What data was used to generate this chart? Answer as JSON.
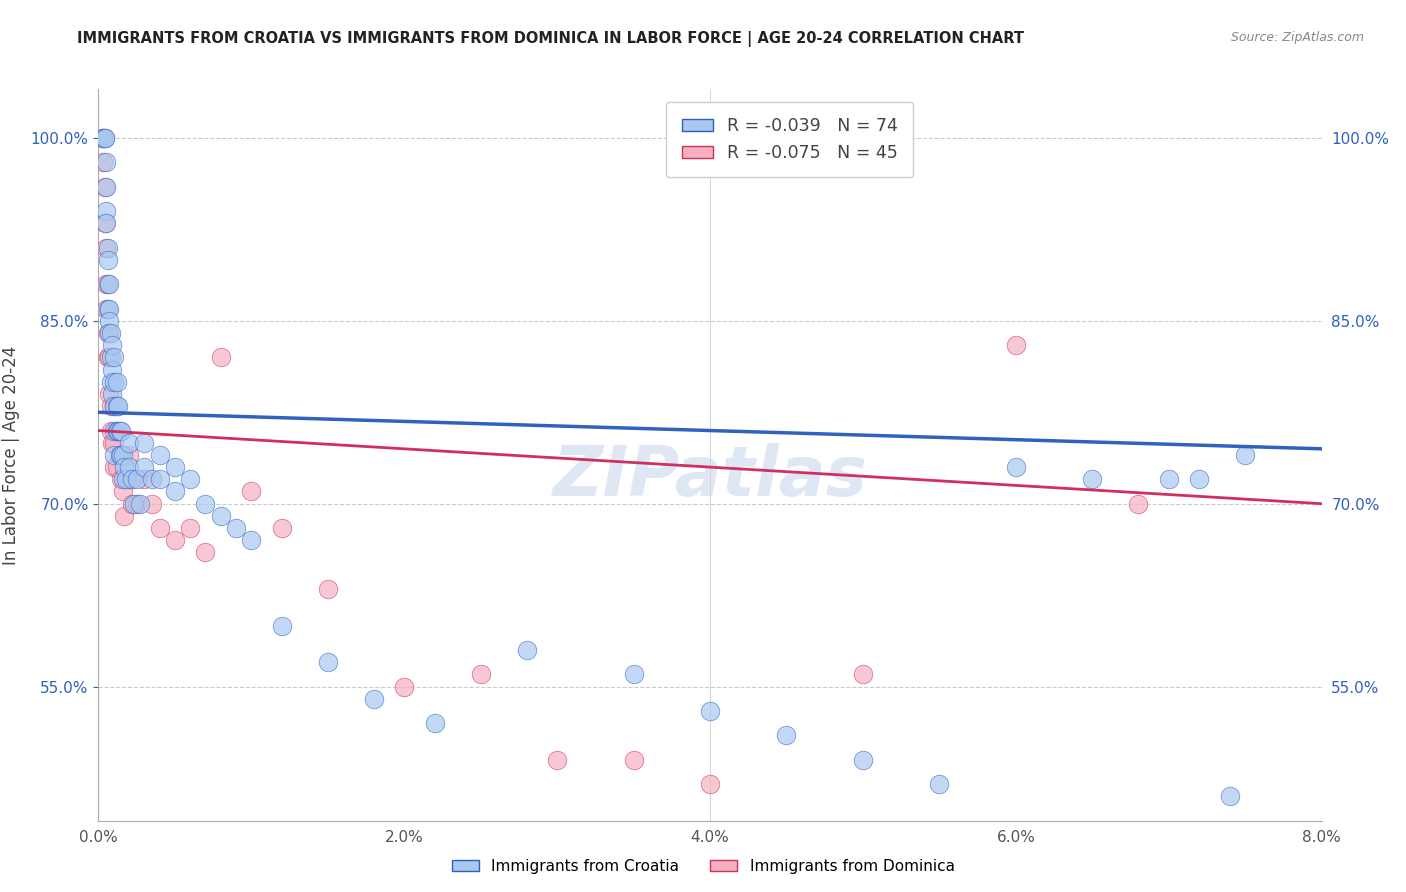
{
  "title": "IMMIGRANTS FROM CROATIA VS IMMIGRANTS FROM DOMINICA IN LABOR FORCE | AGE 20-24 CORRELATION CHART",
  "source": "Source: ZipAtlas.com",
  "ylabel": "In Labor Force | Age 20-24",
  "xlim": [
    0.0,
    0.08
  ],
  "ylim": [
    0.44,
    1.04
  ],
  "xticks": [
    0.0,
    0.01,
    0.02,
    0.03,
    0.04,
    0.05,
    0.06,
    0.07,
    0.08
  ],
  "xticklabels": [
    "0.0%",
    "",
    "2.0%",
    "",
    "4.0%",
    "",
    "6.0%",
    "",
    "8.0%"
  ],
  "yticks": [
    0.55,
    0.7,
    0.85,
    1.0
  ],
  "yticklabels": [
    "55.0%",
    "70.0%",
    "85.0%",
    "100.0%"
  ],
  "croatia_color": "#a8c8f0",
  "dominica_color": "#f5b0c0",
  "croatia_line_color": "#3060c0",
  "dominica_line_color": "#d03060",
  "croatia_r": -0.039,
  "croatia_n": 74,
  "dominica_r": -0.075,
  "dominica_n": 45,
  "watermark": "ZIPatlas",
  "grid_color": "#cccccc",
  "croatia_trend_x": [
    0.0,
    0.08
  ],
  "croatia_trend_y": [
    0.775,
    0.745
  ],
  "dominica_trend_x": [
    0.0,
    0.08
  ],
  "dominica_trend_y": [
    0.76,
    0.7
  ],
  "croatia_x": [
    0.0003,
    0.0003,
    0.0004,
    0.0004,
    0.0005,
    0.0005,
    0.0005,
    0.0005,
    0.0006,
    0.0006,
    0.0006,
    0.0006,
    0.0007,
    0.0007,
    0.0007,
    0.0007,
    0.0008,
    0.0008,
    0.0008,
    0.0009,
    0.0009,
    0.0009,
    0.001,
    0.001,
    0.001,
    0.001,
    0.001,
    0.0012,
    0.0012,
    0.0012,
    0.0013,
    0.0013,
    0.0014,
    0.0014,
    0.0015,
    0.0015,
    0.0016,
    0.0016,
    0.0017,
    0.0018,
    0.002,
    0.002,
    0.0022,
    0.0023,
    0.0025,
    0.0027,
    0.003,
    0.003,
    0.0035,
    0.004,
    0.004,
    0.005,
    0.005,
    0.006,
    0.007,
    0.008,
    0.009,
    0.01,
    0.012,
    0.015,
    0.018,
    0.022,
    0.028,
    0.035,
    0.04,
    0.045,
    0.05,
    0.055,
    0.06,
    0.065,
    0.07,
    0.072,
    0.074,
    0.075
  ],
  "croatia_y": [
    1.0,
    1.0,
    1.0,
    1.0,
    0.98,
    0.96,
    0.94,
    0.93,
    0.91,
    0.9,
    0.88,
    0.86,
    0.88,
    0.86,
    0.85,
    0.84,
    0.84,
    0.82,
    0.8,
    0.83,
    0.81,
    0.79,
    0.82,
    0.8,
    0.78,
    0.76,
    0.74,
    0.8,
    0.78,
    0.76,
    0.78,
    0.76,
    0.76,
    0.74,
    0.76,
    0.74,
    0.74,
    0.72,
    0.73,
    0.72,
    0.75,
    0.73,
    0.72,
    0.7,
    0.72,
    0.7,
    0.75,
    0.73,
    0.72,
    0.74,
    0.72,
    0.73,
    0.71,
    0.72,
    0.7,
    0.69,
    0.68,
    0.67,
    0.6,
    0.57,
    0.54,
    0.52,
    0.58,
    0.56,
    0.53,
    0.51,
    0.49,
    0.47,
    0.73,
    0.72,
    0.72,
    0.72,
    0.46,
    0.74
  ],
  "dominica_x": [
    0.0003,
    0.0003,
    0.0004,
    0.0004,
    0.0005,
    0.0005,
    0.0005,
    0.0006,
    0.0006,
    0.0007,
    0.0007,
    0.0008,
    0.0008,
    0.0009,
    0.001,
    0.001,
    0.001,
    0.0012,
    0.0012,
    0.0014,
    0.0015,
    0.0016,
    0.0017,
    0.002,
    0.002,
    0.0022,
    0.0025,
    0.003,
    0.0035,
    0.004,
    0.005,
    0.006,
    0.007,
    0.008,
    0.01,
    0.012,
    0.015,
    0.02,
    0.025,
    0.03,
    0.035,
    0.04,
    0.05,
    0.06,
    0.068
  ],
  "dominica_y": [
    1.0,
    0.98,
    0.96,
    0.93,
    0.91,
    0.88,
    0.86,
    0.84,
    0.82,
    0.82,
    0.79,
    0.78,
    0.76,
    0.75,
    0.78,
    0.75,
    0.73,
    0.76,
    0.73,
    0.74,
    0.72,
    0.71,
    0.69,
    0.74,
    0.72,
    0.7,
    0.7,
    0.72,
    0.7,
    0.68,
    0.67,
    0.68,
    0.66,
    0.82,
    0.71,
    0.68,
    0.63,
    0.55,
    0.56,
    0.49,
    0.49,
    0.47,
    0.56,
    0.83,
    0.7
  ]
}
